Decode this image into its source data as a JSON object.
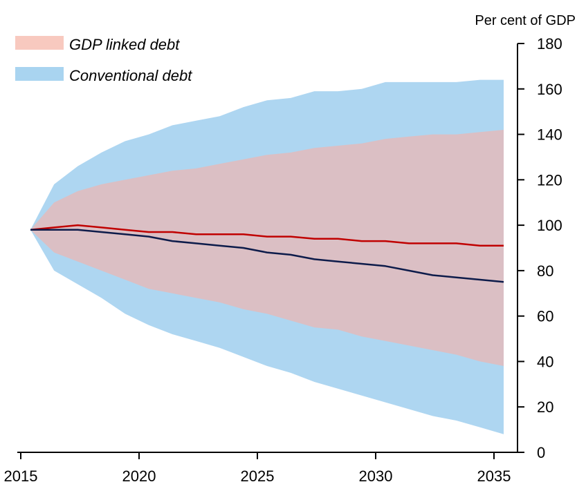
{
  "chart_data": {
    "type": "area",
    "unit_label": "Per cent of GDP",
    "x": [
      2015,
      2016,
      2017,
      2018,
      2019,
      2020,
      2021,
      2022,
      2023,
      2024,
      2025,
      2026,
      2027,
      2028,
      2029,
      2030,
      2031,
      2032,
      2033,
      2034,
      2035
    ],
    "xlim": [
      2015,
      2035
    ],
    "xticks": [
      "2015",
      "2020",
      "2025",
      "2030",
      "2035"
    ],
    "ylim": [
      0,
      180
    ],
    "yticks": [
      "0",
      "20",
      "40",
      "60",
      "80",
      "100",
      "120",
      "140",
      "160",
      "180"
    ],
    "y_axis_side": "right",
    "grid": false,
    "legend": {
      "position": "top-left",
      "entries": [
        {
          "label": "GDP linked debt",
          "color": "#f8c9bf"
        },
        {
          "label": "Conventional debt",
          "color": "#a9d4f0"
        }
      ]
    },
    "bands": [
      {
        "legend": "Conventional debt",
        "color": "#aed6f1",
        "upper": [
          98,
          118,
          126,
          132,
          137,
          140,
          144,
          146,
          148,
          152,
          155,
          156,
          159,
          159,
          160,
          163,
          163,
          163,
          163,
          164,
          164
        ],
        "lower": [
          98,
          80,
          74,
          68,
          61,
          56,
          52,
          49,
          46,
          42,
          38,
          35,
          31,
          28,
          25,
          22,
          19,
          16,
          14,
          11,
          8
        ]
      },
      {
        "legend": "GDP linked debt",
        "color": "#dbbfc4",
        "upper": [
          98,
          110,
          115,
          118,
          120,
          122,
          124,
          125,
          127,
          129,
          131,
          132,
          134,
          135,
          136,
          138,
          139,
          140,
          140,
          141,
          142
        ],
        "lower": [
          98,
          88,
          84,
          80,
          76,
          72,
          70,
          68,
          66,
          63,
          61,
          58,
          55,
          54,
          51,
          49,
          47,
          45,
          43,
          40,
          38
        ]
      }
    ],
    "series": [
      {
        "color": "#c00000",
        "values": [
          98,
          99,
          100,
          99,
          98,
          97,
          97,
          96,
          96,
          96,
          95,
          95,
          94,
          94,
          93,
          93,
          92,
          92,
          92,
          91,
          91
        ]
      },
      {
        "color": "#0d1b4a",
        "values": [
          98,
          98,
          98,
          97,
          96,
          95,
          93,
          92,
          91,
          90,
          88,
          87,
          85,
          84,
          83,
          82,
          80,
          78,
          77,
          76,
          75
        ]
      }
    ]
  }
}
